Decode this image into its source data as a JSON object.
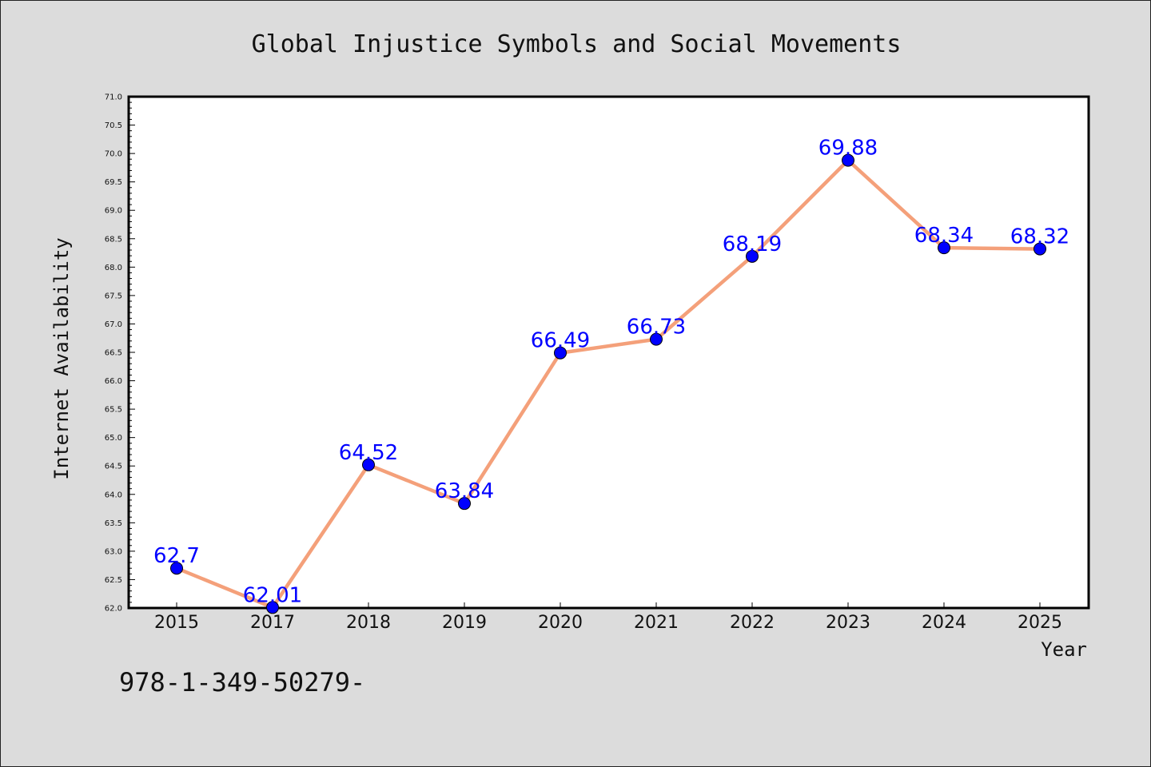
{
  "chart_data": {
    "type": "line",
    "title": "Global Injustice Symbols and Social Movements",
    "xlabel": "Year",
    "ylabel": "Internet Availability",
    "categories": [
      "2015",
      "2017",
      "2018",
      "2019",
      "2020",
      "2021",
      "2022",
      "2023",
      "2024",
      "2025"
    ],
    "series": [
      {
        "values": [
          62.7,
          62.01,
          64.52,
          63.84,
          66.49,
          66.73,
          68.19,
          69.88,
          68.34,
          68.32
        ],
        "labels": [
          "62.7",
          "62.01",
          "64.52",
          "63.84",
          "66.49",
          "66.73",
          "68.19",
          "69.88",
          "68.34",
          "68.32"
        ],
        "line_color": "#f4a07a",
        "marker_color": "#0000ff"
      }
    ],
    "ylim": [
      62.0,
      71.0
    ],
    "yticks": [
      "62.0",
      "62.5",
      "63.0",
      "63.5",
      "64.0",
      "64.5",
      "65.0",
      "65.5",
      "66.0",
      "66.5",
      "67.0",
      "67.5",
      "68.0",
      "68.5",
      "69.0",
      "69.5",
      "70.0",
      "70.5",
      "71.0"
    ],
    "grid": false,
    "label_color": "#0000ff"
  },
  "footnote": "978-1-349-50279-"
}
